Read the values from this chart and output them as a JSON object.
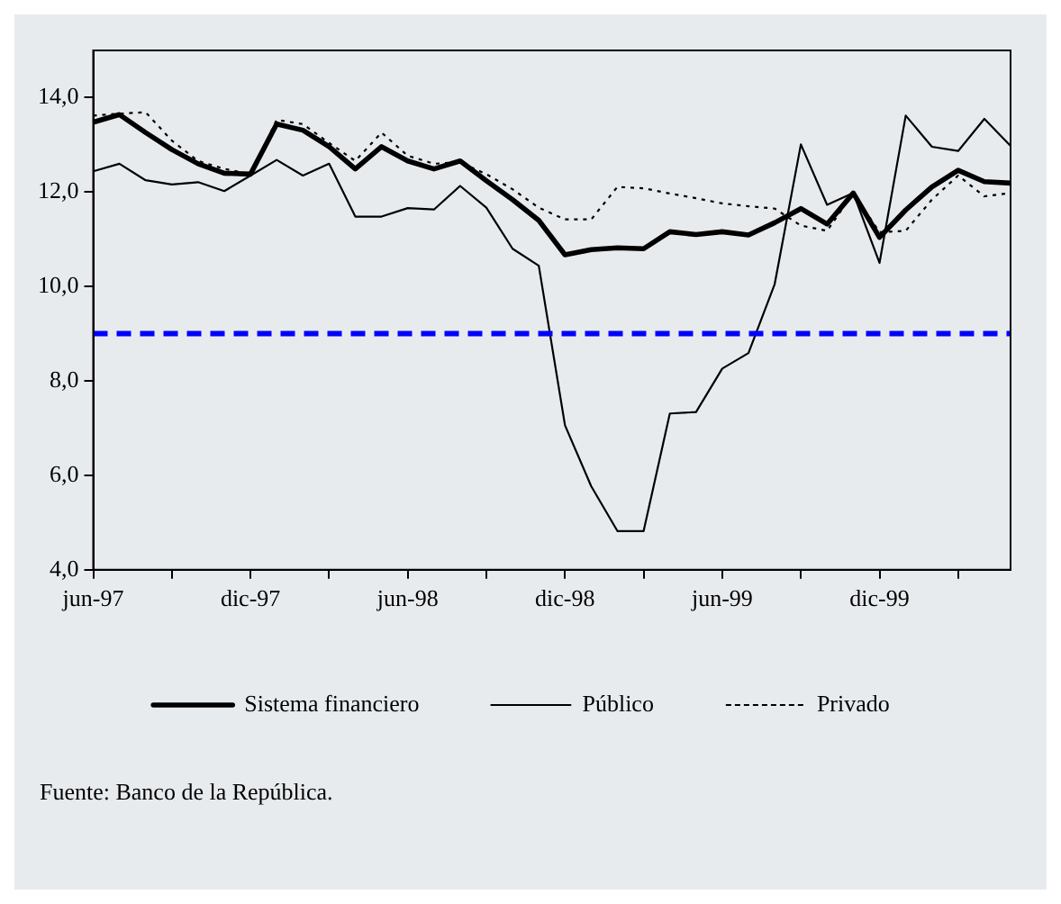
{
  "chart_data": {
    "type": "line",
    "categories": [
      "jun-97",
      null,
      null,
      null,
      null,
      null,
      "dic-97",
      null,
      null,
      null,
      null,
      null,
      "jun-98",
      null,
      null,
      null,
      null,
      null,
      "dic-98",
      null,
      null,
      null,
      null,
      null,
      "jun-99",
      null,
      null,
      null,
      null,
      null,
      "dic-99",
      null,
      null,
      null,
      null,
      null
    ],
    "series": [
      {
        "name": "Sistema financiero",
        "color": "#000000",
        "line_style": "solid",
        "values": [
          13.48,
          13.64,
          13.26,
          12.9,
          12.6,
          12.4,
          12.38,
          13.44,
          13.31,
          12.96,
          12.49,
          12.96,
          12.66,
          12.49,
          12.66,
          12.24,
          11.84,
          11.4,
          10.67,
          10.78,
          10.82,
          10.8,
          11.16,
          11.1,
          11.16,
          11.09,
          11.35,
          11.65,
          11.32,
          11.98,
          11.04,
          11.62,
          12.11,
          12.46,
          12.22,
          12.19
        ]
      },
      {
        "name": "Público",
        "color": "#000000",
        "line_style": "solid",
        "values": [
          12.44,
          12.6,
          12.25,
          12.16,
          12.21,
          12.02,
          12.35,
          12.68,
          12.35,
          12.6,
          11.48,
          11.48,
          11.66,
          11.63,
          12.13,
          11.67,
          10.8,
          10.44,
          7.06,
          5.77,
          4.82,
          4.82,
          7.31,
          7.34,
          8.26,
          8.59,
          10.05,
          13.01,
          11.73,
          11.98,
          10.5,
          13.62,
          12.96,
          12.87,
          13.55,
          12.98
        ]
      },
      {
        "name": "Privado",
        "color": "#000000",
        "line_style": "dotted",
        "values": [
          13.62,
          13.66,
          13.69,
          13.09,
          12.66,
          12.49,
          12.38,
          13.53,
          13.44,
          13.04,
          12.66,
          13.26,
          12.77,
          12.6,
          12.63,
          12.38,
          12.06,
          11.67,
          11.42,
          11.42,
          12.11,
          12.08,
          11.97,
          11.87,
          11.76,
          11.7,
          11.65,
          11.29,
          11.18,
          11.98,
          11.15,
          11.18,
          11.84,
          12.35,
          11.91,
          11.98
        ]
      }
    ],
    "ylim": [
      4,
      15
    ],
    "yticks": [
      {
        "value": 4,
        "label": "4,0"
      },
      {
        "value": 6,
        "label": "6,0"
      },
      {
        "value": 8,
        "label": "8,0"
      },
      {
        "value": 10,
        "label": "10,0"
      },
      {
        "value": 12,
        "label": "12,0"
      },
      {
        "value": 14,
        "label": "14,0"
      }
    ],
    "ref_lines": [
      {
        "axis": "y",
        "value": 9,
        "color": "#0000ff",
        "line_style": "dashed"
      }
    ],
    "grid": false,
    "legend": "bottom",
    "marker": "none",
    "annotations": [
      "Fuente: Banco de la República."
    ]
  }
}
